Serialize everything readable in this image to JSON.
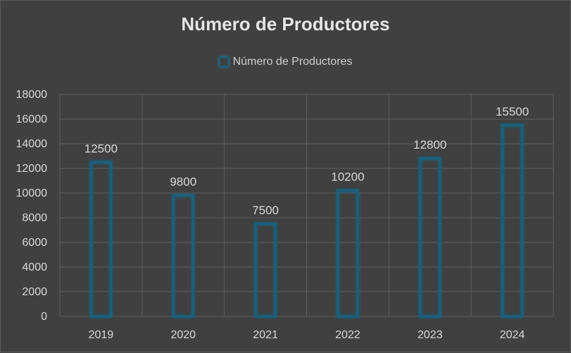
{
  "chart_data": {
    "type": "bar",
    "title": "Número de Productores",
    "xlabel": "",
    "ylabel": "",
    "categories": [
      "2019",
      "2020",
      "2021",
      "2022",
      "2023",
      "2024"
    ],
    "series": [
      {
        "name": "Número de Productores",
        "values": [
          12500,
          9800,
          7500,
          10200,
          12800,
          15500
        ]
      }
    ],
    "ylim": [
      0,
      18000
    ],
    "yticks": [
      "0",
      "2000",
      "4000",
      "6000",
      "8000",
      "10000",
      "12000",
      "14000",
      "16000",
      "18000"
    ],
    "data_labels": [
      "12500",
      "9800",
      "7500",
      "10200",
      "12800",
      "15500"
    ],
    "grid": true,
    "legend_position": "top",
    "colors": {
      "background": "#404040",
      "bar_outline": "#1b5e7a",
      "bar_glow": "#2a8ab8",
      "gridline": "#5e5e5e",
      "text": "#d9d9d9"
    }
  }
}
